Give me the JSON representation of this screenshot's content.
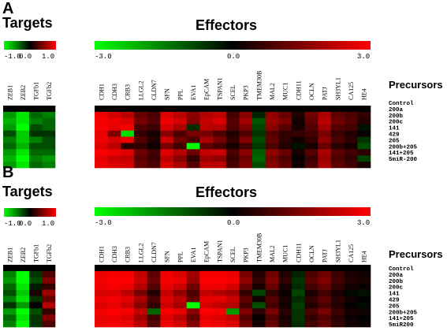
{
  "chart_data": [
    {
      "type": "heatmap",
      "panel": "A",
      "targets_title": "Targets",
      "effectors_title": "Effectors",
      "precursors_title": "Precursors",
      "targets_scale": {
        "min_label": "-1.0",
        "mid_label": "0.0",
        "max_label": "1.0",
        "range": [
          -1.0,
          1.0
        ]
      },
      "effectors_scale": {
        "min_label": "-3.0",
        "mid_label": "0.0",
        "max_label": "3.0",
        "range": [
          -3.0,
          3.0
        ]
      },
      "rows": [
        "Control",
        "200a",
        "200b",
        "200c",
        "141",
        "429",
        "205",
        "200b+205",
        "141+205",
        "5miR-200"
      ],
      "targets_cols": [
        "ZEB1",
        "ZEB2",
        "TGFb1",
        "TGFb2"
      ],
      "effectors_cols": [
        "CDH1",
        "CDH3",
        "CRB3",
        "LLGL2",
        "CLDN7",
        "SFN",
        "PPL",
        "EVA1",
        "EpCAM",
        "TSPAN1",
        "SCEL",
        "PKP3",
        "TMEM30B",
        "MAL2",
        "MUC1",
        "CDH11",
        "OCLN",
        "PATJ",
        "SH3YL1",
        "CA125",
        "HE4"
      ],
      "targets_values": [
        [
          0.0,
          0.0,
          0.0,
          0.0
        ],
        [
          -0.6,
          -0.9,
          -0.4,
          -0.5
        ],
        [
          -0.7,
          -0.9,
          -0.5,
          -0.4
        ],
        [
          -0.6,
          -1.0,
          -0.3,
          -0.4
        ],
        [
          -0.3,
          -0.8,
          -0.2,
          -0.2
        ],
        [
          -0.5,
          -0.8,
          -0.5,
          -0.3
        ],
        [
          -0.4,
          -0.7,
          -0.3,
          -0.3
        ],
        [
          -0.6,
          -0.9,
          -0.4,
          -0.4
        ],
        [
          -0.7,
          -1.0,
          -0.5,
          -0.6
        ],
        [
          -0.6,
          -0.9,
          -0.4,
          -0.5
        ]
      ],
      "effectors_values": [
        [
          0,
          0,
          0,
          0,
          0,
          0,
          0,
          0,
          0,
          0,
          0,
          0,
          0,
          0,
          0,
          0,
          0,
          0,
          0,
          0,
          0
        ],
        [
          2.8,
          2.5,
          2.2,
          1.2,
          0.9,
          2.6,
          2.2,
          1.6,
          2.1,
          2.3,
          0.8,
          1.6,
          -0.4,
          1.7,
          1.2,
          0.4,
          1.3,
          2.0,
          1.1,
          0.9,
          0.6
        ],
        [
          2.9,
          2.8,
          2.6,
          1.4,
          1.0,
          2.8,
          2.5,
          1.5,
          2.3,
          2.6,
          1.0,
          1.9,
          -1.0,
          1.8,
          1.5,
          0.2,
          1.2,
          2.2,
          1.3,
          1.0,
          0.4
        ],
        [
          2.9,
          2.7,
          2.9,
          0.9,
          0.7,
          2.5,
          2.0,
          -0.5,
          2.2,
          2.1,
          0.9,
          1.5,
          -0.8,
          1.6,
          1.0,
          0.3,
          1.0,
          1.9,
          1.0,
          0.8,
          -0.2
        ],
        [
          2.7,
          1.5,
          -2.6,
          0.6,
          0.3,
          1.6,
          0.9,
          1.4,
          1.4,
          0.9,
          0.4,
          0.9,
          -0.6,
          1.0,
          0.6,
          0.6,
          0.8,
          1.4,
          0.7,
          0.4,
          0.1
        ],
        [
          2.8,
          2.5,
          2.8,
          1.0,
          0.4,
          2.4,
          1.3,
          0.9,
          2.0,
          1.4,
          0.6,
          1.5,
          -0.9,
          1.2,
          0.5,
          0.2,
          0.6,
          1.7,
          0.9,
          0.5,
          -0.6
        ],
        [
          2.6,
          2.2,
          0.5,
          0.6,
          0.2,
          1.4,
          0.8,
          -3.0,
          1.1,
          0.8,
          0.3,
          0.8,
          -0.7,
          0.9,
          0.4,
          -0.2,
          0.3,
          1.2,
          0.5,
          0.3,
          -0.9
        ],
        [
          2.9,
          2.8,
          2.6,
          1.3,
          0.8,
          2.6,
          2.1,
          1.3,
          2.3,
          2.4,
          0.9,
          1.6,
          -1.1,
          1.7,
          1.2,
          0.3,
          1.0,
          2.0,
          1.1,
          0.8,
          0.5
        ],
        [
          2.7,
          2.4,
          2.3,
          1.1,
          0.7,
          2.2,
          1.6,
          0.6,
          1.9,
          1.7,
          0.7,
          1.3,
          -1.2,
          1.4,
          0.9,
          0.1,
          0.7,
          1.8,
          0.9,
          0.6,
          -0.8
        ],
        [
          2.8,
          2.6,
          2.5,
          1.2,
          0.9,
          2.5,
          2.0,
          1.0,
          2.2,
          2.2,
          0.8,
          1.5,
          -0.9,
          1.6,
          1.1,
          0.2,
          0.9,
          2.0,
          1.1,
          0.8,
          0.3
        ]
      ]
    },
    {
      "type": "heatmap",
      "panel": "B",
      "targets_title": "Targets",
      "effectors_title": "Effectors",
      "precursors_title": "Precursors",
      "targets_scale": {
        "min_label": "-1.0",
        "mid_label": "0.0",
        "max_label": "1.0",
        "range": [
          -1.0,
          1.0
        ]
      },
      "effectors_scale": {
        "min_label": "-3.0",
        "mid_label": "0.0",
        "max_label": "3.0",
        "range": [
          -3.0,
          3.0
        ]
      },
      "rows": [
        "Control",
        "200a",
        "200b",
        "200c",
        "141",
        "429",
        "205",
        "200b+205",
        "141+205",
        "5miR200"
      ],
      "targets_cols": [
        "ZEB1",
        "ZEB2",
        "TGFb1",
        "TGFb2"
      ],
      "effectors_cols": [
        "CDH1",
        "CDH3",
        "CRB3",
        "LLGL2",
        "CLDN7",
        "SFN",
        "PPL",
        "EVA1",
        "EpCAM",
        "TSPAN1",
        "SCEL",
        "PKP3",
        "TMEM30B",
        "MAL2",
        "MUC1",
        "CDH11",
        "OCLN",
        "PATJ",
        "SH3YL1",
        "CA125",
        "HE4"
      ],
      "targets_values": [
        [
          0.0,
          0.0,
          0.0,
          0.0
        ],
        [
          -0.5,
          -1.0,
          -0.2,
          0.3
        ],
        [
          -0.6,
          -1.0,
          -0.3,
          0.5
        ],
        [
          -0.4,
          -0.9,
          -0.1,
          0.2
        ],
        [
          -0.3,
          -0.8,
          0.1,
          0.6
        ],
        [
          -0.5,
          -0.9,
          -0.2,
          0.4
        ],
        [
          -0.2,
          -0.6,
          0.0,
          0.7
        ],
        [
          -0.6,
          -1.0,
          -0.3,
          0.2
        ],
        [
          -0.4,
          -0.9,
          -0.2,
          0.5
        ],
        [
          -0.5,
          -1.0,
          -0.2,
          0.3
        ]
      ],
      "effectors_values": [
        [
          0,
          0,
          0,
          0,
          0,
          0,
          0,
          0,
          0,
          0,
          0,
          0,
          0,
          0,
          0,
          0,
          0,
          0,
          0,
          0,
          0
        ],
        [
          2.8,
          2.9,
          2.9,
          2.3,
          1.1,
          2.8,
          2.6,
          1.9,
          2.9,
          2.9,
          2.8,
          1.4,
          0.4,
          1.3,
          0.4,
          -0.4,
          0.9,
          1.3,
          0.7,
          0.3,
          0.2
        ],
        [
          2.9,
          3.0,
          3.0,
          2.4,
          1.3,
          2.9,
          2.8,
          1.8,
          3.0,
          3.0,
          2.9,
          1.7,
          0.6,
          1.5,
          0.6,
          -0.6,
          1.1,
          1.5,
          0.8,
          0.4,
          0.3
        ],
        [
          2.8,
          2.9,
          2.8,
          2.1,
          1.0,
          2.7,
          2.4,
          1.3,
          2.8,
          2.8,
          2.5,
          1.2,
          0.3,
          1.2,
          0.3,
          -0.5,
          0.8,
          1.2,
          0.6,
          0.2,
          0.1
        ],
        [
          2.5,
          2.6,
          2.2,
          1.4,
          0.4,
          2.3,
          1.7,
          0.9,
          2.3,
          2.1,
          1.9,
          0.6,
          -0.8,
          0.6,
          0.1,
          -0.8,
          0.3,
          0.8,
          0.3,
          -0.1,
          -0.2
        ],
        [
          2.8,
          2.9,
          2.7,
          2.0,
          0.9,
          2.6,
          2.2,
          1.2,
          2.7,
          2.7,
          2.4,
          1.1,
          0.2,
          1.0,
          0.3,
          -0.5,
          0.6,
          1.1,
          0.5,
          0.2,
          0.0
        ],
        [
          2.6,
          2.7,
          2.4,
          1.6,
          0.6,
          2.4,
          1.9,
          -3.0,
          2.5,
          2.3,
          2.1,
          0.8,
          -0.9,
          0.8,
          0.2,
          -0.7,
          0.4,
          0.9,
          0.4,
          0.0,
          -0.1
        ],
        [
          2.9,
          3.0,
          2.9,
          2.3,
          -1.2,
          2.9,
          2.7,
          1.6,
          3.0,
          2.9,
          -1.8,
          1.5,
          0.5,
          1.4,
          0.5,
          -0.6,
          0.9,
          1.4,
          0.7,
          0.3,
          0.2
        ],
        [
          2.7,
          2.8,
          2.6,
          1.9,
          0.8,
          2.6,
          2.2,
          1.2,
          2.7,
          2.6,
          2.3,
          1.0,
          0.1,
          1.0,
          0.3,
          -0.6,
          0.6,
          1.0,
          0.5,
          0.1,
          0.0
        ],
        [
          2.8,
          2.9,
          2.8,
          2.2,
          1.0,
          2.8,
          2.5,
          1.5,
          2.9,
          2.8,
          2.6,
          1.3,
          0.3,
          1.2,
          0.4,
          -0.5,
          0.8,
          1.2,
          0.6,
          0.2,
          0.1
        ]
      ]
    }
  ]
}
